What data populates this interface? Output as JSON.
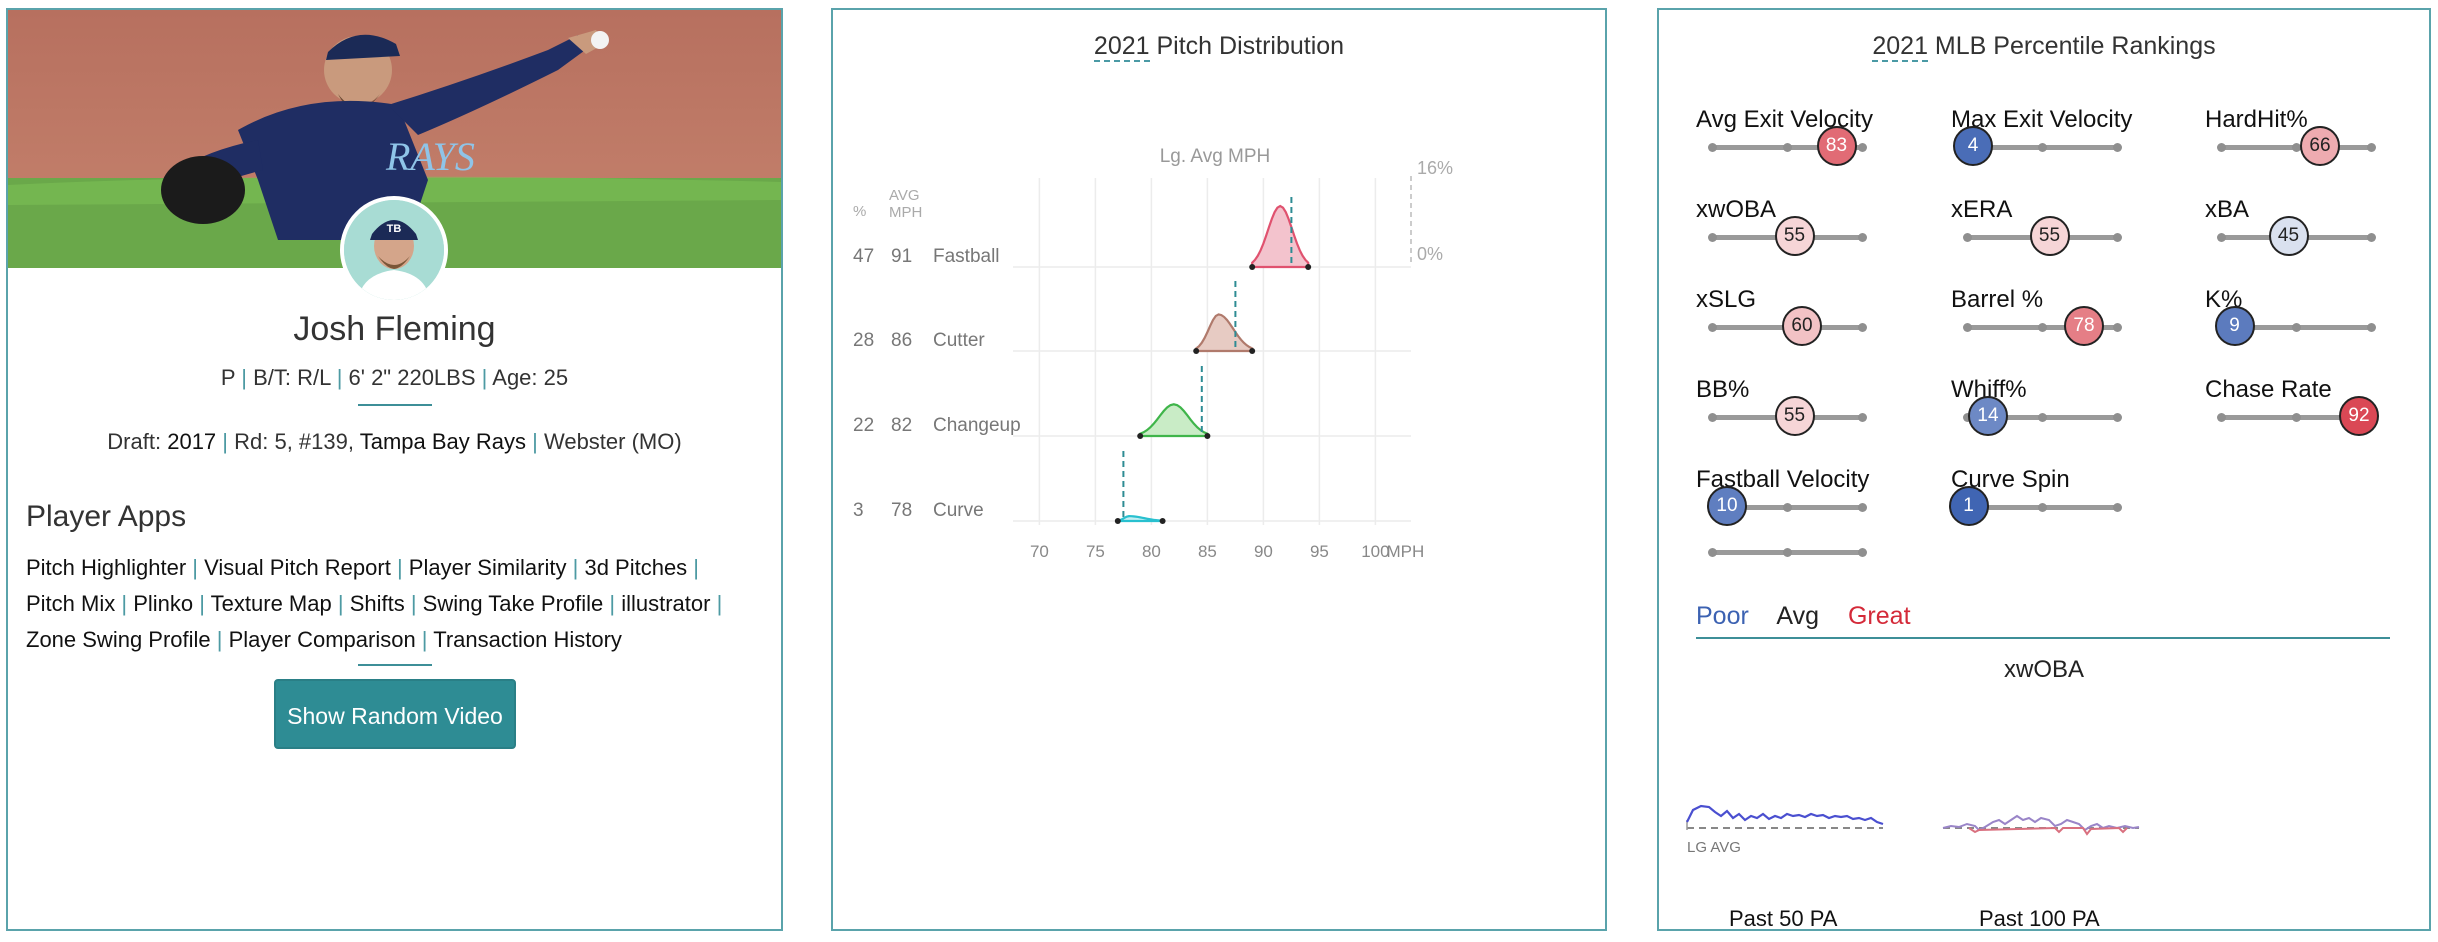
{
  "player": {
    "name": "Josh Fleming",
    "position": "P",
    "bats_throws": "B/T: R/L",
    "height_weight": "6' 2\" 220LBS",
    "age": "Age: 25",
    "draft_label": "Draft:",
    "draft_year": "2017",
    "draft_round": "Rd: 5, #139,",
    "draft_team": "Tampa Bay Rays",
    "school": "Webster (MO)",
    "team_cap_logo": "TB",
    "jersey_text": "RAYS"
  },
  "apps": {
    "title": "Player Apps",
    "items": [
      "Pitch Highlighter",
      "Visual Pitch Report",
      "Player Similarity",
      "3d Pitches",
      "Pitch Mix",
      "Plinko",
      "Texture Map",
      "Shifts",
      "Swing Take Profile",
      "illustrator",
      "Zone Swing Profile",
      "Player Comparison",
      "Transaction History"
    ],
    "random_video": "Show Random Video"
  },
  "distribution": {
    "year": "2021",
    "title_rest": " Pitch Distribution",
    "pct_header": "%",
    "avg_header": "AVG",
    "mph_header": "MPH",
    "lg_avg_label": "Lg. Avg MPH",
    "top_label": "16%",
    "zero_label": "0%",
    "x_axis_unit": "MPH"
  },
  "chart_data": {
    "type": "area",
    "title": "2021 Pitch Distribution",
    "xlabel": "MPH",
    "x_ticks": [
      70,
      75,
      80,
      85,
      90,
      95,
      100
    ],
    "xlim": [
      68,
      103
    ],
    "ylim": [
      0,
      16
    ],
    "series": [
      {
        "name": "Fastball",
        "pct": 47,
        "avg_mph": 91,
        "range": [
          89,
          94
        ],
        "peak": 91.5,
        "density_peak": 12.5,
        "lg_avg": 92.5,
        "color": "#e0526f",
        "fill": "#f3c3cd"
      },
      {
        "name": "Cutter",
        "pct": 28,
        "avg_mph": 86,
        "range": [
          84,
          89
        ],
        "peak": 86,
        "density_peak": 7.5,
        "lg_avg": 87.5,
        "color": "#b07a6c",
        "fill": "#e7cbc3"
      },
      {
        "name": "Changeup",
        "pct": 22,
        "avg_mph": 82,
        "range": [
          79,
          85
        ],
        "peak": 82,
        "density_peak": 6.5,
        "lg_avg": 84.5,
        "color": "#3fb54a",
        "fill": "#c9ecc6"
      },
      {
        "name": "Curve",
        "pct": 3,
        "avg_mph": 78,
        "range": [
          77,
          81
        ],
        "peak": 78,
        "density_peak": 1.0,
        "lg_avg": 77.5,
        "color": "#28c0cf",
        "fill": "#c3eef2"
      }
    ]
  },
  "percentiles": {
    "year": "2021",
    "title_rest": " MLB Percentile Rankings",
    "metrics": [
      {
        "label": "Avg Exit Velocity",
        "value": 83
      },
      {
        "label": "Max Exit Velocity",
        "value": 4
      },
      {
        "label": "HardHit%",
        "value": 66
      },
      {
        "label": "xwOBA",
        "value": 55
      },
      {
        "label": "xERA",
        "value": 55
      },
      {
        "label": "xBA",
        "value": 45
      },
      {
        "label": "xSLG",
        "value": 60
      },
      {
        "label": "Barrel %",
        "value": 78
      },
      {
        "label": "K%",
        "value": 9
      },
      {
        "label": "BB%",
        "value": 55
      },
      {
        "label": "Whiff%",
        "value": 14
      },
      {
        "label": "Chase Rate",
        "value": 92
      },
      {
        "label": "Fastball Velocity",
        "value": 10
      },
      {
        "label": "Curve Spin",
        "value": 1
      }
    ],
    "legend": {
      "poor": "Poor",
      "avg": "Avg",
      "great": "Great"
    },
    "colors": {
      "poor": "#3c62b2",
      "great": "#d42a39"
    },
    "spark_title": "xwOBA",
    "lg_avg": "LG AVG",
    "past50": "Past 50 PA",
    "past100": "Past 100 PA"
  }
}
